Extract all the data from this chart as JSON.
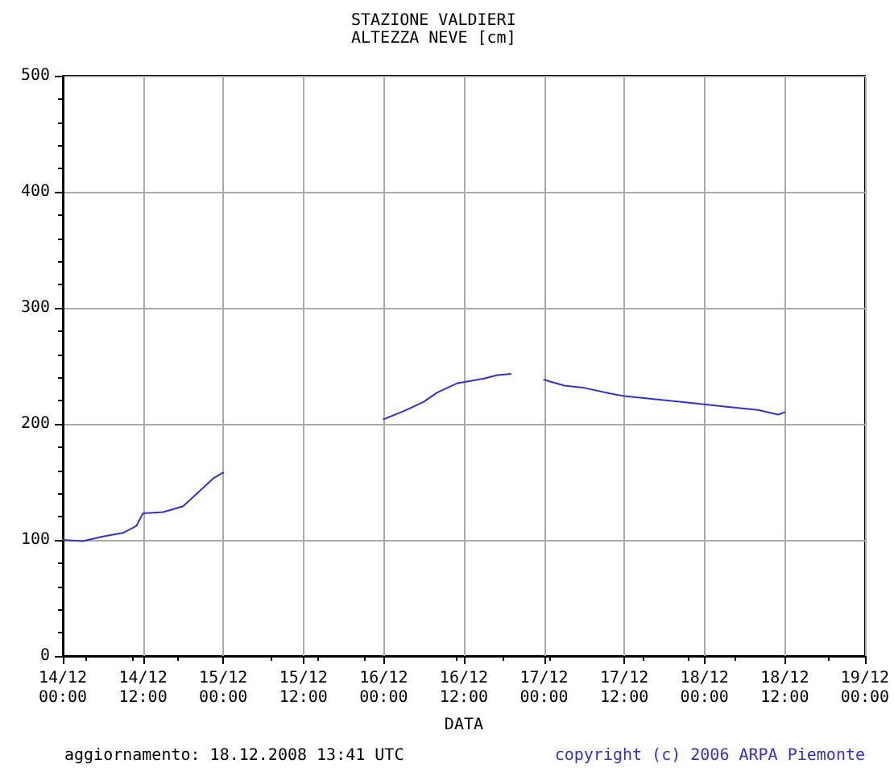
{
  "chart_data": {
    "type": "line",
    "title": "STAZIONE VALDIERI",
    "subtitle": "ALTEZZA NEVE [cm]",
    "xlabel": "DATA",
    "annotations": [
      "aggiornamento: 18.12.2008 13:41 UTC",
      "copyright (c) 2006 ARPA Piemonte"
    ],
    "x": [
      "2008-12-14T00:00",
      "2008-12-14T03:00",
      "2008-12-14T06:00",
      "2008-12-14T09:00",
      "2008-12-14T11:00",
      "2008-12-14T12:00",
      "2008-12-14T15:00",
      "2008-12-14T18:00",
      "2008-12-14T21:00",
      "2008-12-14T22:30",
      "2008-12-15T00:00",
      "2008-12-15T12:00",
      "2008-12-16T00:00",
      "2008-12-16T03:00",
      "2008-12-16T06:00",
      "2008-12-16T08:00",
      "2008-12-16T11:00",
      "2008-12-16T12:00",
      "2008-12-16T15:00",
      "2008-12-16T17:00",
      "2008-12-16T19:00",
      "2008-12-16T21:00",
      "2008-12-17T00:00",
      "2008-12-17T03:00",
      "2008-12-17T06:00",
      "2008-12-17T10:00",
      "2008-12-17T12:00",
      "2008-12-17T17:00",
      "2008-12-17T22:00",
      "2008-12-18T03:00",
      "2008-12-18T08:00",
      "2008-12-18T11:00",
      "2008-12-18T12:00"
    ],
    "series": [
      {
        "color": "#3333cc",
        "values": [
          100,
          99,
          103,
          106,
          112,
          123,
          124,
          129,
          145,
          153,
          158,
          null,
          204,
          211,
          219,
          227,
          235,
          236,
          239,
          242,
          243,
          null,
          238,
          233,
          231,
          226,
          224,
          221,
          218,
          215,
          212,
          208,
          210
        ]
      }
    ],
    "xlim": [
      "2008-12-14T00:00",
      "2008-12-19T00:00"
    ],
    "xticks": [
      {
        "value": "2008-12-14T00:00",
        "label": "14/12\n00:00"
      },
      {
        "value": "2008-12-14T12:00",
        "label": "14/12\n12:00"
      },
      {
        "value": "2008-12-15T00:00",
        "label": "15/12\n00:00"
      },
      {
        "value": "2008-12-15T12:00",
        "label": "15/12\n12:00"
      },
      {
        "value": "2008-12-16T00:00",
        "label": "16/12\n00:00"
      },
      {
        "value": "2008-12-16T12:00",
        "label": "16/12\n12:00"
      },
      {
        "value": "2008-12-17T00:00",
        "label": "17/12\n00:00"
      },
      {
        "value": "2008-12-17T12:00",
        "label": "17/12\n12:00"
      },
      {
        "value": "2008-12-18T00:00",
        "label": "18/12\n00:00"
      },
      {
        "value": "2008-12-18T12:00",
        "label": "18/12\n12:00"
      },
      {
        "value": "2008-12-19T00:00",
        "label": "19/12\n00:00"
      }
    ],
    "ylim": [
      0,
      500
    ],
    "yticks": [
      0,
      100,
      200,
      300,
      400,
      500
    ],
    "grid": true,
    "marker": "none",
    "line_style": "solid"
  }
}
